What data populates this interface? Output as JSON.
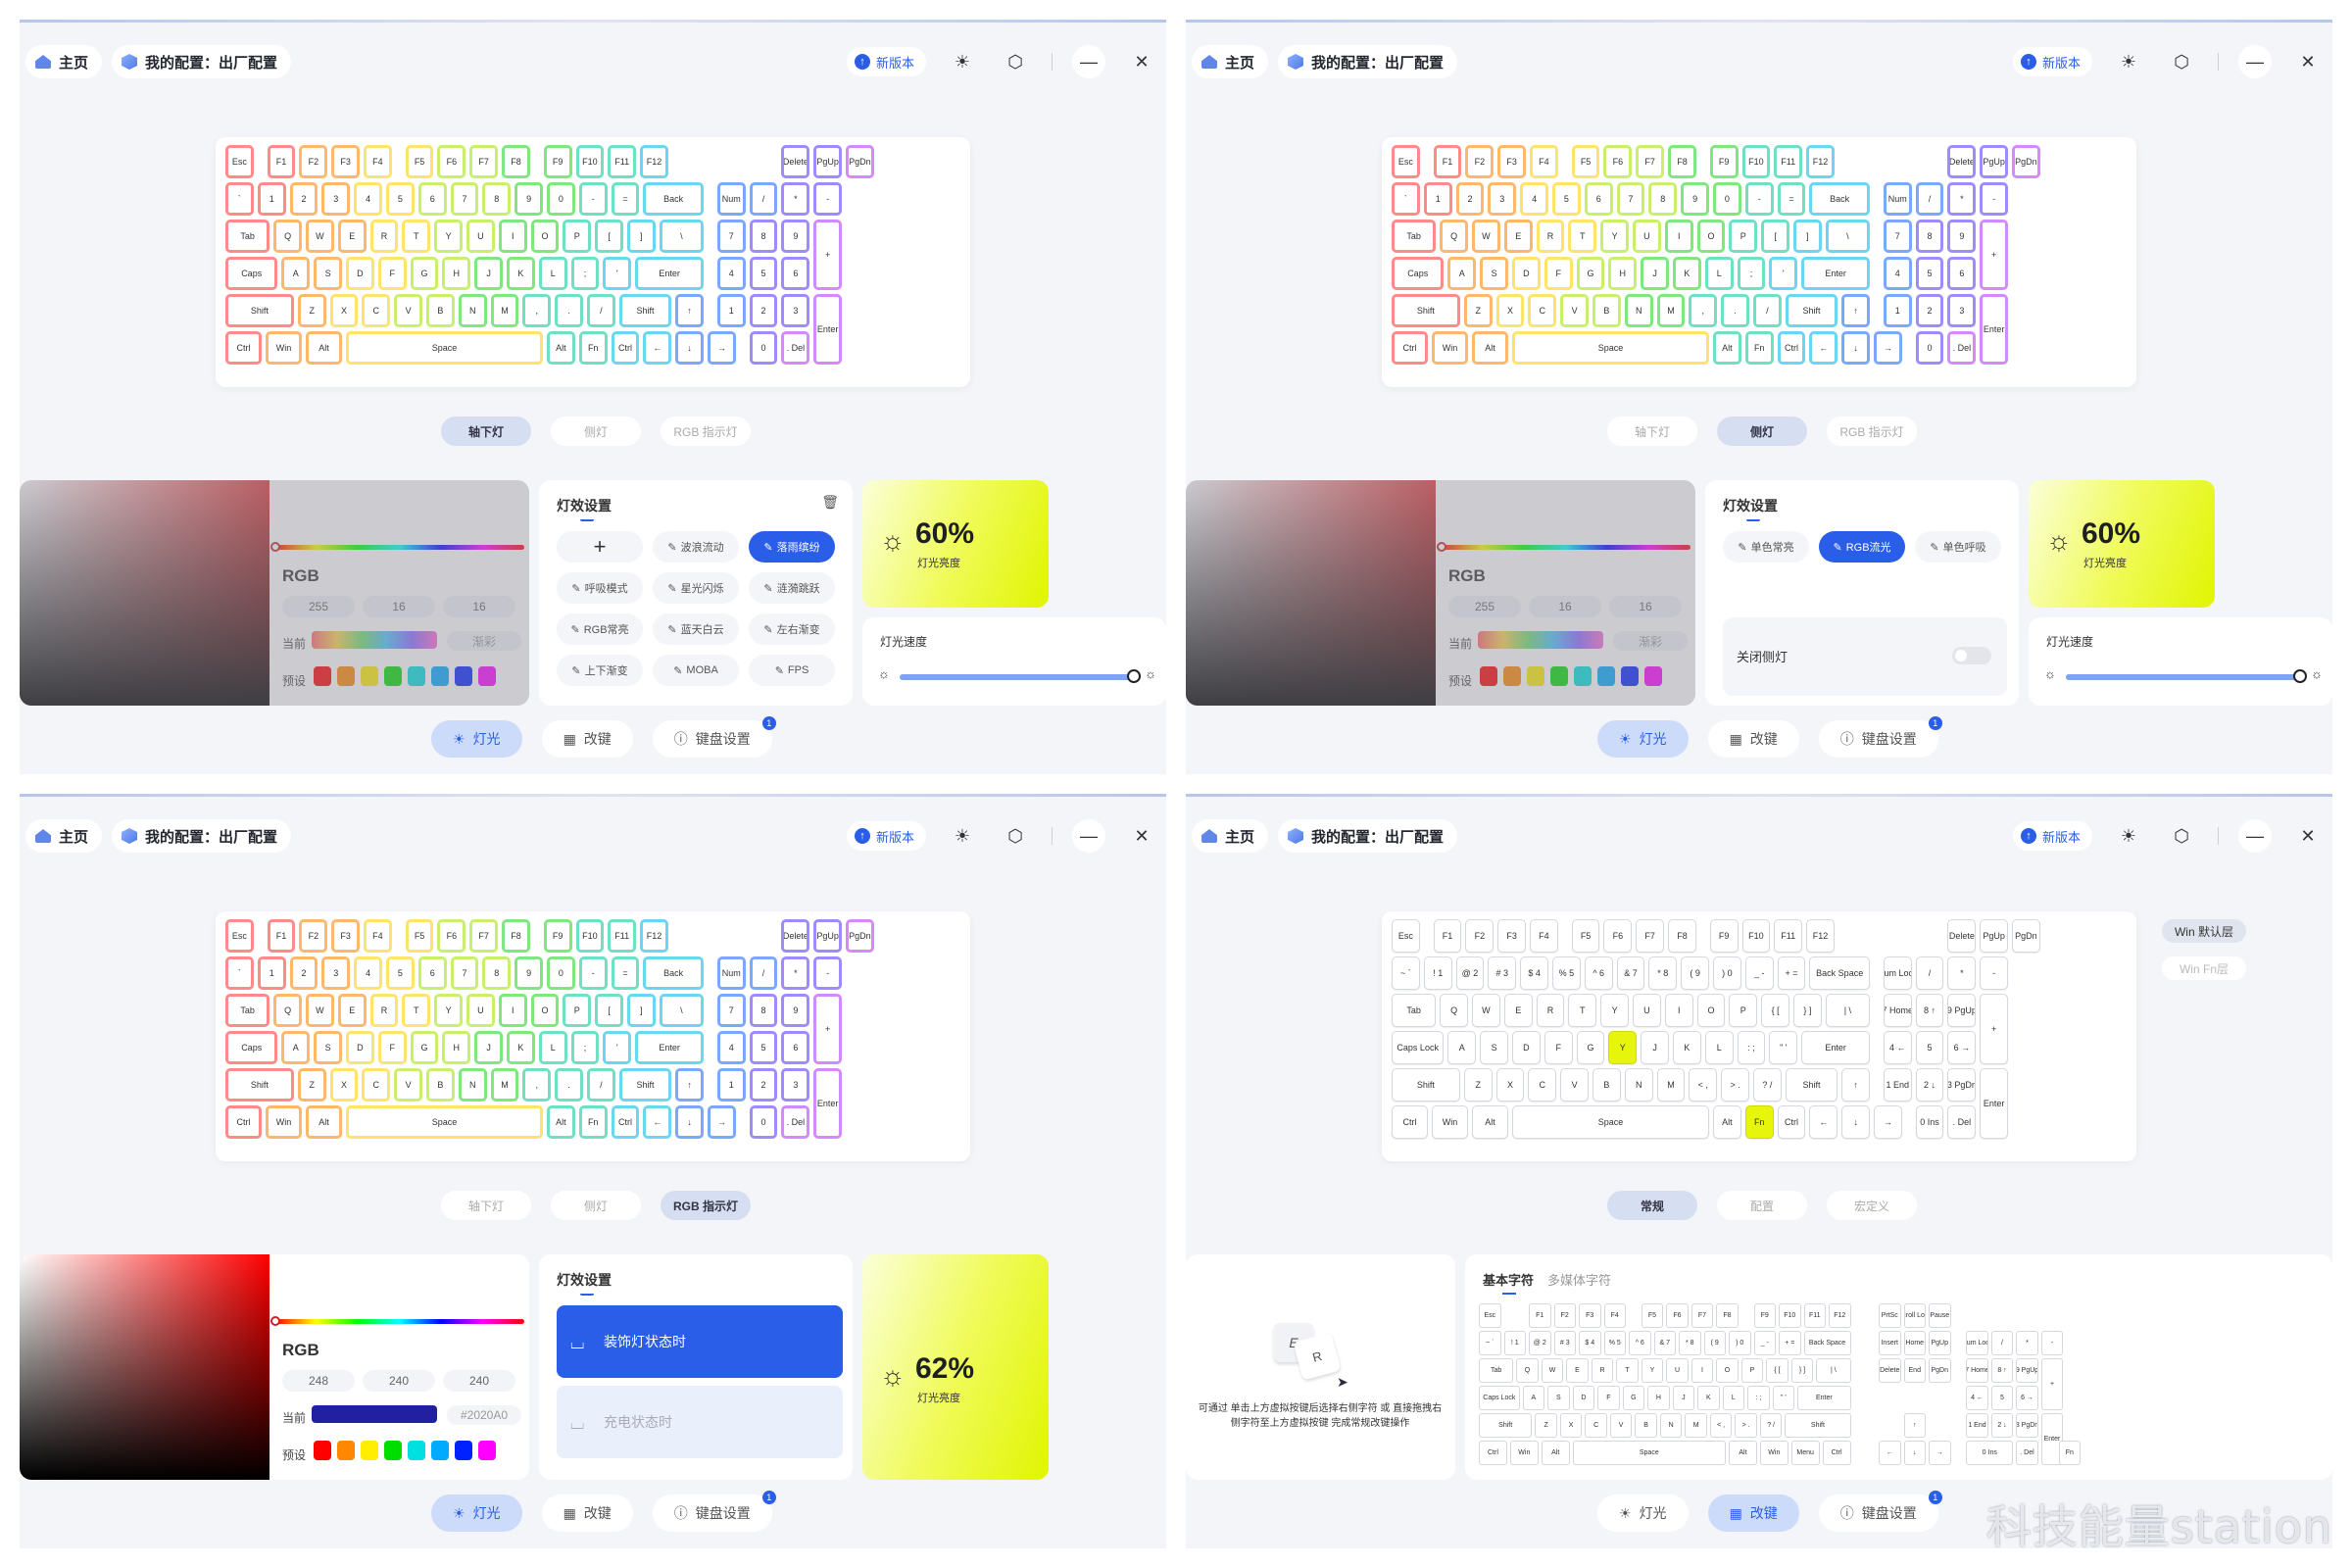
{
  "topbar": {
    "home": "主页",
    "profile": "我的配置：出厂配置",
    "new_version": "新版本",
    "icons": [
      "sun-icon",
      "settings-icon",
      "minimize-icon",
      "close-icon"
    ]
  },
  "keyboard": {
    "rows": [
      [
        [
          "Esc",
          1
        ],
        [
          "gap",
          0.3
        ],
        [
          "F1",
          1
        ],
        [
          "F2",
          1
        ],
        [
          "F3",
          1
        ],
        [
          "F4",
          1
        ],
        [
          "gap",
          0.3
        ],
        [
          "F5",
          1
        ],
        [
          "F6",
          1
        ],
        [
          "F7",
          1
        ],
        [
          "F8",
          1
        ],
        [
          "gap",
          0.3
        ],
        [
          "F9",
          1
        ],
        [
          "F10",
          1
        ],
        [
          "F11",
          1
        ],
        [
          "F12",
          1
        ],
        [
          "gap",
          3.4
        ],
        [
          "Delete",
          1
        ],
        [
          "PgUp",
          1
        ],
        [
          "PgDn",
          1
        ]
      ],
      [
        [
          "`",
          1
        ],
        [
          "1",
          1
        ],
        [
          "2",
          1
        ],
        [
          "3",
          1
        ],
        [
          "4",
          1
        ],
        [
          "5",
          1
        ],
        [
          "6",
          1
        ],
        [
          "7",
          1
        ],
        [
          "8",
          1
        ],
        [
          "9",
          1
        ],
        [
          "0",
          1
        ],
        [
          "-",
          1
        ],
        [
          "=",
          1
        ],
        [
          "Back",
          2
        ],
        [
          "gap",
          0.3
        ],
        [
          "Num",
          1
        ],
        [
          "/",
          1
        ],
        [
          "*",
          1
        ],
        [
          "-",
          1
        ]
      ],
      [
        [
          "Tab",
          1.5
        ],
        [
          "Q",
          1
        ],
        [
          "W",
          1
        ],
        [
          "E",
          1
        ],
        [
          "R",
          1
        ],
        [
          "T",
          1
        ],
        [
          "Y",
          1
        ],
        [
          "U",
          1
        ],
        [
          "I",
          1
        ],
        [
          "O",
          1
        ],
        [
          "P",
          1
        ],
        [
          "[",
          1
        ],
        [
          "]",
          1
        ],
        [
          "\\",
          1.5
        ],
        [
          "gap",
          0.3
        ],
        [
          "7",
          1
        ],
        [
          "8",
          1
        ],
        [
          "9",
          1
        ],
        [
          "+",
          1,
          2
        ]
      ],
      [
        [
          "Caps",
          1.75
        ],
        [
          "A",
          1
        ],
        [
          "S",
          1
        ],
        [
          "D",
          1
        ],
        [
          "F",
          1
        ],
        [
          "G",
          1
        ],
        [
          "H",
          1
        ],
        [
          "J",
          1
        ],
        [
          "K",
          1
        ],
        [
          "L",
          1
        ],
        [
          ";",
          1
        ],
        [
          "'",
          1
        ],
        [
          "Enter",
          2.25
        ],
        [
          "gap",
          0.3
        ],
        [
          "4",
          1
        ],
        [
          "5",
          1
        ],
        [
          "6",
          1
        ]
      ],
      [
        [
          "Shift",
          2.25
        ],
        [
          "Z",
          1
        ],
        [
          "X",
          1
        ],
        [
          "C",
          1
        ],
        [
          "V",
          1
        ],
        [
          "B",
          1
        ],
        [
          "N",
          1
        ],
        [
          "M",
          1
        ],
        [
          ",",
          1
        ],
        [
          ".",
          1
        ],
        [
          "/",
          1
        ],
        [
          "Shift",
          1.75
        ],
        [
          "↑",
          1
        ],
        [
          "gap",
          0.3
        ],
        [
          "1",
          1
        ],
        [
          "2",
          1
        ],
        [
          "3",
          1
        ],
        [
          "Enter",
          1,
          2
        ]
      ],
      [
        [
          "Ctrl",
          1.25
        ],
        [
          "Win",
          1.25
        ],
        [
          "Alt",
          1.25
        ],
        [
          "Space",
          6.25
        ],
        [
          "Alt",
          1
        ],
        [
          "Fn",
          1
        ],
        [
          "Ctrl",
          1
        ],
        [
          "←",
          1
        ],
        [
          "↓",
          1
        ],
        [
          "→",
          1
        ],
        [
          "gap",
          0.3
        ],
        [
          "0",
          1
        ],
        [
          ". Del",
          1
        ]
      ]
    ]
  },
  "keyboard_plain": {
    "rows": [
      [
        [
          "Esc",
          1
        ],
        [
          "gap",
          0.3
        ],
        [
          "F1",
          1
        ],
        [
          "F2",
          1
        ],
        [
          "F3",
          1
        ],
        [
          "F4",
          1
        ],
        [
          "gap",
          0.3
        ],
        [
          "F5",
          1
        ],
        [
          "F6",
          1
        ],
        [
          "F7",
          1
        ],
        [
          "F8",
          1
        ],
        [
          "gap",
          0.3
        ],
        [
          "F9",
          1
        ],
        [
          "F10",
          1
        ],
        [
          "F11",
          1
        ],
        [
          "F12",
          1
        ],
        [
          "gap",
          3.4
        ],
        [
          "Delete",
          1
        ],
        [
          "PgUp",
          1
        ],
        [
          "PgDn",
          1
        ]
      ],
      [
        [
          "~ `",
          1
        ],
        [
          "! 1",
          1
        ],
        [
          "@ 2",
          1
        ],
        [
          "# 3",
          1
        ],
        [
          "$ 4",
          1
        ],
        [
          "% 5",
          1
        ],
        [
          "^ 6",
          1
        ],
        [
          "& 7",
          1
        ],
        [
          "* 8",
          1
        ],
        [
          "( 9",
          1
        ],
        [
          ") 0",
          1
        ],
        [
          "_ -",
          1
        ],
        [
          "+ =",
          1
        ],
        [
          "Back Space",
          2
        ],
        [
          "gap",
          0.3
        ],
        [
          "Num Lock",
          1
        ],
        [
          "/",
          1
        ],
        [
          "*",
          1
        ],
        [
          "-",
          1
        ]
      ],
      [
        [
          "Tab",
          1.5
        ],
        [
          "Q",
          1
        ],
        [
          "W",
          1
        ],
        [
          "E",
          1
        ],
        [
          "R",
          1
        ],
        [
          "T",
          1
        ],
        [
          "Y",
          1
        ],
        [
          "U",
          1
        ],
        [
          "I",
          1
        ],
        [
          "O",
          1
        ],
        [
          "P",
          1
        ],
        [
          "{ [",
          1
        ],
        [
          "} ]",
          1
        ],
        [
          "| \\",
          1.5
        ],
        [
          "gap",
          0.3
        ],
        [
          "7 Home",
          1
        ],
        [
          "8 ↑",
          1
        ],
        [
          "9 PgUp",
          1
        ],
        [
          "+",
          1,
          2
        ]
      ],
      [
        [
          "Caps Lock",
          1.75
        ],
        [
          "A",
          1
        ],
        [
          "S",
          1
        ],
        [
          "D",
          1
        ],
        [
          "F",
          1
        ],
        [
          "G",
          1
        ],
        [
          "Y",
          1,
          1,
          "hl"
        ],
        [
          "J",
          1
        ],
        [
          "K",
          1
        ],
        [
          "L",
          1
        ],
        [
          ": ;",
          1
        ],
        [
          "\" '",
          1
        ],
        [
          "Enter",
          2.25
        ],
        [
          "gap",
          0.3
        ],
        [
          "4 ←",
          1
        ],
        [
          "5",
          1
        ],
        [
          "6 →",
          1
        ]
      ],
      [
        [
          "Shift",
          2.25
        ],
        [
          "Z",
          1
        ],
        [
          "X",
          1
        ],
        [
          "C",
          1
        ],
        [
          "V",
          1
        ],
        [
          "B",
          1
        ],
        [
          "N",
          1
        ],
        [
          "M",
          1
        ],
        [
          "< ,",
          1
        ],
        [
          "> .",
          1
        ],
        [
          "? /",
          1
        ],
        [
          "Shift",
          1.75
        ],
        [
          "↑",
          1
        ],
        [
          "gap",
          0.3
        ],
        [
          "1 End",
          1
        ],
        [
          "2 ↓",
          1
        ],
        [
          "3 PgDn",
          1
        ],
        [
          "Enter",
          1,
          2
        ]
      ],
      [
        [
          "Ctrl",
          1.25
        ],
        [
          "Win",
          1.25
        ],
        [
          "Alt",
          1.25
        ],
        [
          "Space",
          6.25
        ],
        [
          "Alt",
          1
        ],
        [
          "Fn",
          1,
          1,
          "hl"
        ],
        [
          "Ctrl",
          1
        ],
        [
          "←",
          1
        ],
        [
          "↓",
          1
        ],
        [
          "→",
          1
        ],
        [
          "gap",
          0.3
        ],
        [
          "0 Ins",
          1
        ],
        [
          ". Del",
          1
        ]
      ]
    ]
  },
  "mini_keyboard": {
    "rows": [
      [
        [
          "Esc",
          1
        ],
        [
          "gap",
          1
        ],
        [
          "F1",
          1
        ],
        [
          "F2",
          1
        ],
        [
          "F3",
          1
        ],
        [
          "F4",
          1
        ],
        [
          "gap",
          0.5
        ],
        [
          "F5",
          1
        ],
        [
          "F6",
          1
        ],
        [
          "F7",
          1
        ],
        [
          "F8",
          1
        ],
        [
          "gap",
          0.5
        ],
        [
          "F9",
          1
        ],
        [
          "F10",
          1
        ],
        [
          "F11",
          1
        ],
        [
          "F12",
          1
        ],
        [
          "gap",
          1
        ],
        [
          "PrtSc",
          1
        ],
        [
          "Scroll Lock",
          1
        ],
        [
          "Pause",
          1
        ]
      ],
      [
        [
          "~ `",
          1
        ],
        [
          "! 1",
          1
        ],
        [
          "@ 2",
          1
        ],
        [
          "# 3",
          1
        ],
        [
          "$ 4",
          1
        ],
        [
          "% 5",
          1
        ],
        [
          "^ 6",
          1
        ],
        [
          "& 7",
          1
        ],
        [
          "* 8",
          1
        ],
        [
          "( 9",
          1
        ],
        [
          ") 0",
          1
        ],
        [
          "_ -",
          1
        ],
        [
          "+ =",
          1
        ],
        [
          "Back Space",
          2
        ],
        [
          "gap",
          1
        ],
        [
          "Insert",
          1
        ],
        [
          "Home",
          1
        ],
        [
          "PgUp",
          1
        ],
        [
          "gap",
          0.5
        ],
        [
          "Num Lock",
          1
        ],
        [
          "/",
          1
        ],
        [
          "*",
          1
        ],
        [
          "-",
          1
        ]
      ],
      [
        [
          "Tab",
          1.5
        ],
        [
          "Q",
          1
        ],
        [
          "W",
          1
        ],
        [
          "E",
          1
        ],
        [
          "R",
          1
        ],
        [
          "T",
          1
        ],
        [
          "Y",
          1
        ],
        [
          "U",
          1
        ],
        [
          "I",
          1
        ],
        [
          "O",
          1
        ],
        [
          "P",
          1
        ],
        [
          "{ [",
          1
        ],
        [
          "} ]",
          1
        ],
        [
          "| \\",
          1.5
        ],
        [
          "gap",
          1
        ],
        [
          "Delete",
          1
        ],
        [
          "End",
          1
        ],
        [
          "PgDn",
          1
        ],
        [
          "gap",
          0.5
        ],
        [
          "7 Home",
          1
        ],
        [
          "8 ↑",
          1
        ],
        [
          "9 PgUp",
          1
        ],
        [
          "+",
          1,
          2
        ]
      ],
      [
        [
          "Caps Lock",
          1.75
        ],
        [
          "A",
          1
        ],
        [
          "S",
          1
        ],
        [
          "D",
          1
        ],
        [
          "F",
          1
        ],
        [
          "G",
          1
        ],
        [
          "H",
          1
        ],
        [
          "J",
          1
        ],
        [
          "K",
          1
        ],
        [
          "L",
          1
        ],
        [
          ": ;",
          1
        ],
        [
          "\" '",
          1
        ],
        [
          "Enter",
          2.25
        ],
        [
          "gap",
          4.5
        ],
        [
          "4 ←",
          1
        ],
        [
          "5",
          1
        ],
        [
          "6 →",
          1
        ]
      ],
      [
        [
          "Shift",
          2.25
        ],
        [
          "Z",
          1
        ],
        [
          "X",
          1
        ],
        [
          "C",
          1
        ],
        [
          "V",
          1
        ],
        [
          "B",
          1
        ],
        [
          "N",
          1
        ],
        [
          "M",
          1
        ],
        [
          "< ,",
          1
        ],
        [
          "> .",
          1
        ],
        [
          "? /",
          1
        ],
        [
          "Shift",
          2.75
        ],
        [
          "gap",
          2
        ],
        [
          "↑",
          1
        ],
        [
          "gap",
          1.5
        ],
        [
          "1 End",
          1
        ],
        [
          "2 ↓",
          1
        ],
        [
          "3 PgDn",
          1
        ],
        [
          "Enter",
          1,
          2
        ]
      ],
      [
        [
          "Ctrl",
          1.25
        ],
        [
          "Win",
          1.25
        ],
        [
          "Alt",
          1.25
        ],
        [
          "Space",
          6.25
        ],
        [
          "Alt",
          1.25
        ],
        [
          "Win",
          1.25
        ],
        [
          "Menu",
          1.25
        ],
        [
          "Ctrl",
          1.25
        ],
        [
          "gap",
          1
        ],
        [
          "←",
          1
        ],
        [
          "↓",
          1
        ],
        [
          "→",
          1
        ],
        [
          "gap",
          0.5
        ],
        [
          "0 Ins",
          2
        ],
        [
          ". Del",
          1
        ],
        [
          "gap",
          0.7
        ],
        [
          "Fn",
          1
        ]
      ]
    ]
  },
  "light_tabs": [
    "轴下灯",
    "侧灯",
    "RGB 指示灯"
  ],
  "color": {
    "rgb_label": "RGB",
    "current_label": "当前",
    "preset_label": "预设",
    "panel0": {
      "r": "255",
      "g": "16",
      "b": "16",
      "hex": "渐彩"
    },
    "panel2": {
      "r": "248",
      "g": "240",
      "b": "240",
      "hex": "#2020A0"
    }
  },
  "effects": {
    "title": "灯效设置",
    "underglow": [
      "+",
      "波浪流动",
      "落雨缤纷",
      "呼吸模式",
      "星光闪烁",
      "涟漪跳跃",
      "RGB常亮",
      "蓝天白云",
      "左右渐变",
      "上下渐变",
      "MOBA",
      "FPS"
    ],
    "side": [
      "单色常亮",
      "RGB流光",
      "单色呼吸"
    ],
    "side_off": "关闭侧灯",
    "indicator_on": "装饰灯状态时",
    "indicator_off": "充电状态时"
  },
  "brightness": {
    "value_a": "60%",
    "value_b": "62%",
    "label": "灯光亮度"
  },
  "speed": {
    "label": "灯光速度",
    "value": 1.0
  },
  "nav": [
    "灯光",
    "改键",
    "键盘设置"
  ],
  "nav_badge": "1",
  "remap": {
    "tabs": [
      "常规",
      "配置",
      "宏定义"
    ],
    "layers": [
      "Win 默认层",
      "Win Fn层"
    ],
    "char_tab_basic": "基本字符",
    "char_tab_media": "多媒体字符",
    "hint_e": "E",
    "hint_r": "R",
    "hint": "可通过 单击上方虚拟按键后选择右侧字符 或 直接拖拽右侧字符至上方虚拟按键 完成常规改键操作"
  },
  "watermark": "科技能量station",
  "colors": {
    "accent": "#2B5EE8",
    "current_swatch_a": "linear-gradient(90deg,#ff6b6b,#ffd34d,#6ee06e,#4dc3ff,#8a6bff,#ff6bd5)",
    "current_swatch_b": "#2020A0",
    "presets": [
      "#ff0000",
      "#ff8800",
      "#ffee00",
      "#00dd00",
      "#00e0e0",
      "#00aaff",
      "#0022ff",
      "#ff00ff"
    ]
  }
}
